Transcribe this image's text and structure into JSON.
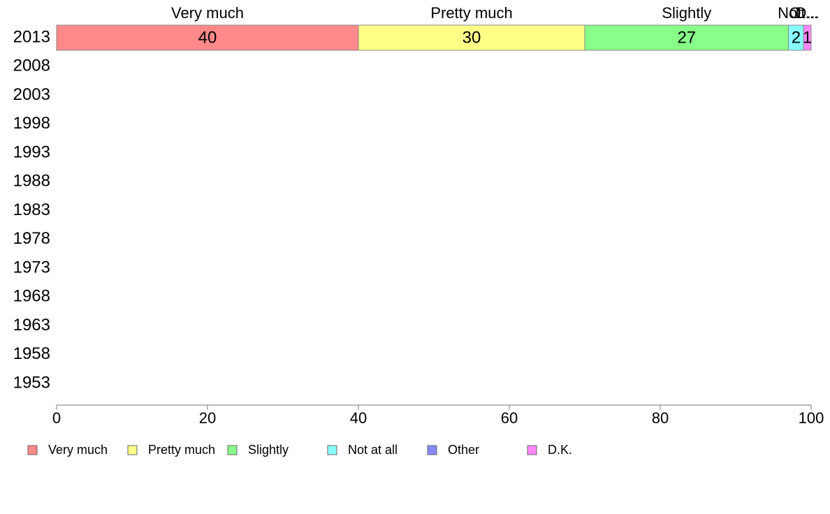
{
  "chart_data": {
    "type": "bar",
    "orientation": "horizontal",
    "stacked": true,
    "title": "",
    "xlabel": "",
    "ylabel": "",
    "xlim": [
      0,
      100
    ],
    "x_ticks": [
      0,
      20,
      40,
      60,
      80,
      100
    ],
    "categories": [
      "2013",
      "2008",
      "2003",
      "1998",
      "1993",
      "1988",
      "1983",
      "1978",
      "1973",
      "1968",
      "1963",
      "1958",
      "1953"
    ],
    "series": [
      {
        "name": "Very much",
        "header": "Very much",
        "color": "#ff8888",
        "values": [
          40,
          null,
          null,
          null,
          null,
          null,
          null,
          null,
          null,
          null,
          null,
          null,
          null
        ]
      },
      {
        "name": "Pretty much",
        "header": "Pretty much",
        "color": "#ffff88",
        "values": [
          30,
          null,
          null,
          null,
          null,
          null,
          null,
          null,
          null,
          null,
          null,
          null,
          null
        ]
      },
      {
        "name": "Slightly",
        "header": "Slightly",
        "color": "#88ff88",
        "values": [
          27,
          null,
          null,
          null,
          null,
          null,
          null,
          null,
          null,
          null,
          null,
          null,
          null
        ]
      },
      {
        "name": "Not at all",
        "header": "Not...",
        "color": "#88ffff",
        "values": [
          2,
          null,
          null,
          null,
          null,
          null,
          null,
          null,
          null,
          null,
          null,
          null,
          null
        ]
      },
      {
        "name": "Other",
        "header": "Ot...",
        "color": "#8888ff",
        "values": [
          0,
          null,
          null,
          null,
          null,
          null,
          null,
          null,
          null,
          null,
          null,
          null,
          null
        ]
      },
      {
        "name": "D.K.",
        "header": "D...",
        "color": "#ff88ff",
        "values": [
          1,
          null,
          null,
          null,
          null,
          null,
          null,
          null,
          null,
          null,
          null,
          null,
          null
        ]
      }
    ],
    "data_labels": [
      "40",
      "30",
      "27",
      "2",
      "",
      "1"
    ],
    "grid": false,
    "legend_position": "bottom-left"
  }
}
